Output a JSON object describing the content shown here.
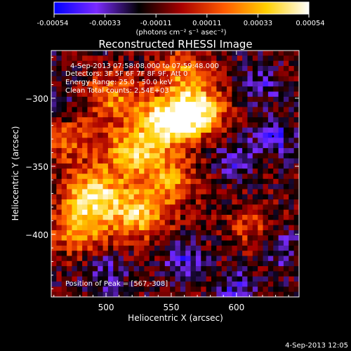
{
  "colorbar": {
    "ticks": [
      "-0.00054",
      "-0.00033",
      "-0.00011",
      "0.00011",
      "0.00033",
      "0.00054"
    ],
    "unit_label": "(photons cm⁻² s⁻¹ asec⁻²)",
    "stops": [
      "#0000ff",
      "#7a2aff",
      "#000000",
      "#a80000",
      "#ff5a00",
      "#ffd000",
      "#ffffff"
    ]
  },
  "chart_data": {
    "type": "heatmap",
    "title": "Reconstructed RHESSI Image",
    "xlabel": "Heliocentric X (arcsec)",
    "ylabel": "Heliocentric Y (arcsec)",
    "xlim": [
      458,
      648
    ],
    "ylim": [
      -446,
      -265
    ],
    "xticks": [
      500,
      550,
      600
    ],
    "yticks": [
      -300,
      -350,
      -400
    ],
    "value_range": [
      -0.00054,
      0.00054
    ],
    "annotations": {
      "time": "4-Sep-2013 07:58:08.000 to 07:59:48.000",
      "detectors": "Detectors: 3F 5F 6F 7F 8F 9F, Att 0",
      "energy": "Energy Range: 25.0 - 50.0 keV",
      "clean": "Clean    Total counts: 2.54E+03",
      "peak": "Position of Peak = [567,-308]"
    },
    "peak": [
      567,
      -308
    ],
    "bright_regions": [
      {
        "x": 568,
        "y": -310,
        "level": 1.0
      },
      {
        "x": 545,
        "y": -318,
        "level": 0.85
      },
      {
        "x": 520,
        "y": -340,
        "level": 0.75
      },
      {
        "x": 490,
        "y": -370,
        "level": 0.85
      },
      {
        "x": 480,
        "y": -395,
        "level": 0.7
      },
      {
        "x": 505,
        "y": -300,
        "level": 0.55
      },
      {
        "x": 525,
        "y": -385,
        "level": 0.8
      },
      {
        "x": 548,
        "y": -360,
        "level": 0.55
      },
      {
        "x": 470,
        "y": -330,
        "level": 0.45
      },
      {
        "x": 560,
        "y": -280,
        "level": 0.5
      },
      {
        "x": 612,
        "y": -395,
        "level": 0.3
      }
    ],
    "dark_regions": [
      {
        "x": 628,
        "y": -328,
        "level": -0.6
      },
      {
        "x": 598,
        "y": -345,
        "level": -0.45
      },
      {
        "x": 560,
        "y": -420,
        "level": -0.5
      },
      {
        "x": 500,
        "y": -428,
        "level": -0.4
      },
      {
        "x": 620,
        "y": -290,
        "level": -0.4
      },
      {
        "x": 600,
        "y": -440,
        "level": -0.45
      },
      {
        "x": 635,
        "y": -410,
        "level": -0.45
      },
      {
        "x": 470,
        "y": -305,
        "level": -0.3
      }
    ]
  },
  "footer": {
    "timestamp": "4-Sep-2013 12:05"
  }
}
